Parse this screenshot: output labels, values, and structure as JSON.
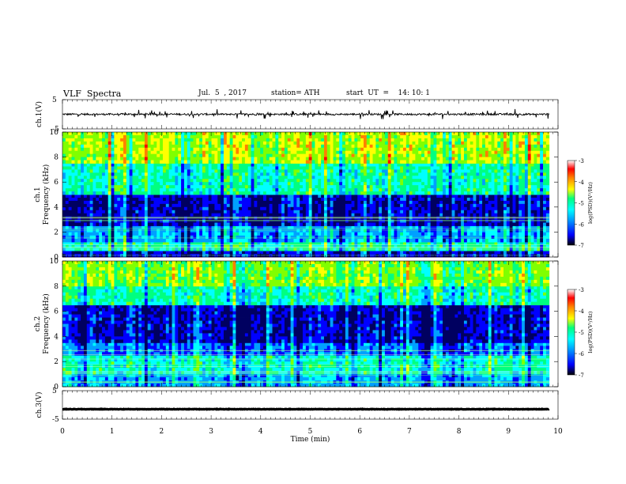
{
  "header": {
    "title": "VLF  Spectra",
    "date": "Jul.  5  , 2017",
    "station": "station= ATH",
    "start": "start  UT  =    14: 10: 1"
  },
  "chart_data": [
    {
      "type": "line",
      "name": "ch1-timeseries",
      "ylabel": "ch.1(V)",
      "ylim": [
        -5,
        5
      ],
      "yticks": [
        "5",
        "-5"
      ],
      "xlim": [
        0,
        10
      ],
      "data_end_min": 9.82,
      "baseline_v": 0.0,
      "noise_amplitude_v": 0.6
    },
    {
      "type": "heatmap",
      "name": "ch1-spectrogram",
      "ylabel": "ch.1\nFrequency (kHz)",
      "ylim": [
        0,
        10
      ],
      "yticks": [
        "0",
        "2",
        "4",
        "6",
        "8",
        "10"
      ],
      "xlim": [
        0,
        10
      ],
      "data_end_min": 9.82,
      "colorbar": {
        "label": "log(PSD)(V²/Hz)",
        "range": [
          -7,
          -3
        ],
        "ticks": [
          "-3",
          "-4",
          "-5",
          "-6",
          "-7"
        ]
      },
      "bands": [
        {
          "from_khz": 0,
          "to_khz": 0.5,
          "level": -6.5
        },
        {
          "from_khz": 0.5,
          "to_khz": 1.2,
          "level": -5.2
        },
        {
          "from_khz": 1.2,
          "to_khz": 2.5,
          "level": -5.8
        },
        {
          "from_khz": 2.5,
          "to_khz": 5.0,
          "level": -6.5
        },
        {
          "from_khz": 5.0,
          "to_khz": 7.5,
          "level": -5.2
        },
        {
          "from_khz": 7.5,
          "to_khz": 10,
          "level": -4.4
        }
      ]
    },
    {
      "type": "heatmap",
      "name": "ch2-spectrogram",
      "ylabel": "ch.2\nFrequency (kHz)",
      "ylim": [
        0,
        10
      ],
      "yticks": [
        "0",
        "2",
        "4",
        "6",
        "8",
        "10"
      ],
      "xlim": [
        0,
        10
      ],
      "data_end_min": 9.82,
      "colorbar": {
        "label": "log(PSD)(V²/Hz)",
        "range": [
          -7,
          -3
        ],
        "ticks": [
          "-3",
          "-4",
          "-5",
          "-6",
          "-7"
        ]
      },
      "bands": [
        {
          "from_khz": 0,
          "to_khz": 1.0,
          "level": -5.8
        },
        {
          "from_khz": 1.0,
          "to_khz": 2.5,
          "level": -5.3
        },
        {
          "from_khz": 2.5,
          "to_khz": 3.5,
          "level": -6.0
        },
        {
          "from_khz": 3.5,
          "to_khz": 6.5,
          "level": -6.5
        },
        {
          "from_khz": 6.5,
          "to_khz": 8.0,
          "level": -5.2
        },
        {
          "from_khz": 8.0,
          "to_khz": 10,
          "level": -4.6
        }
      ]
    },
    {
      "type": "line",
      "name": "ch3-timeseries",
      "ylabel": "ch.3(V)",
      "ylim": [
        -5,
        5
      ],
      "yticks": [
        "5",
        "-5"
      ],
      "xlim": [
        0,
        10
      ],
      "data_end_min": 9.82,
      "baseline_v": -1.5,
      "noise_amplitude_v": 0.15
    }
  ],
  "xaxis": {
    "label": "Time  (min)",
    "ticks": [
      "0",
      "1",
      "2",
      "3",
      "4",
      "5",
      "6",
      "7",
      "8",
      "9",
      "10"
    ]
  },
  "colormap": [
    "#000060",
    "#0000ff",
    "#00a0ff",
    "#00ffff",
    "#00ff80",
    "#80ff00",
    "#ffff00",
    "#ff8000",
    "#ff0000",
    "#ffffff"
  ]
}
